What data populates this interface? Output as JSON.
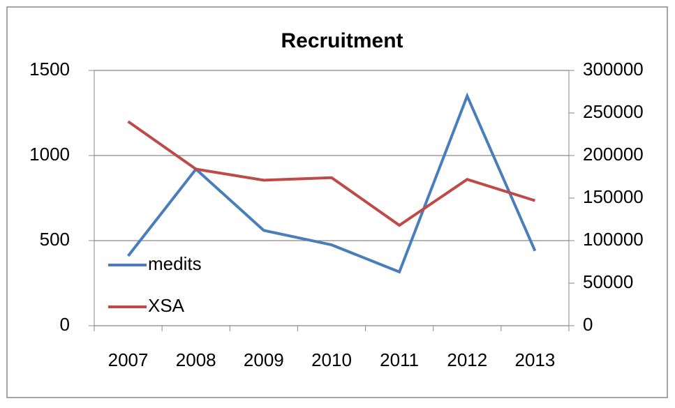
{
  "chart_data": {
    "type": "line",
    "title": "Recruitment",
    "categories": [
      "2007",
      "2008",
      "2009",
      "2010",
      "2011",
      "2012",
      "2013"
    ],
    "series": [
      {
        "name": "medits",
        "color": "#4a7ebb",
        "values": [
          410,
          920,
          560,
          475,
          316,
          1350,
          440
        ]
      },
      {
        "name": "XSA",
        "color": "#be4b48",
        "axis": "y2",
        "values": [
          240000,
          184000,
          171000,
          174000,
          118000,
          172000,
          147000
        ]
      }
    ],
    "ylim": [
      0,
      1500
    ],
    "yticks": [
      0,
      500,
      1000,
      1500
    ],
    "y2lim": [
      0,
      300000
    ],
    "y2ticks": [
      0,
      50000,
      100000,
      150000,
      200000,
      250000,
      300000
    ],
    "grid": true,
    "legend": "left"
  }
}
